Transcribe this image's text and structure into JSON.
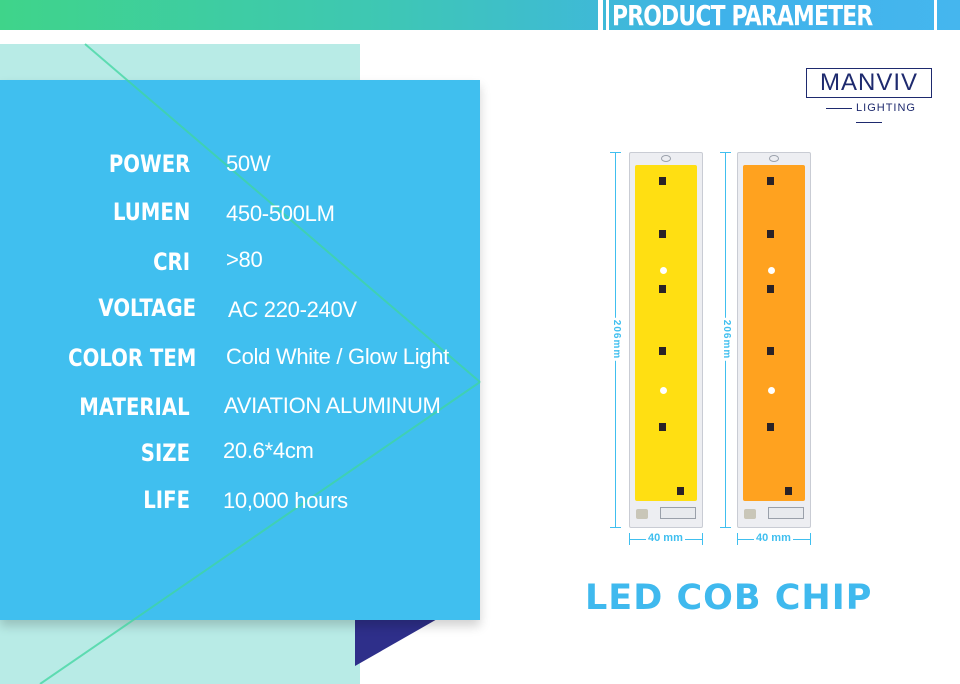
{
  "header": {
    "title": "PRODUCT PARAMETER"
  },
  "brand": {
    "name": "MANVIV",
    "tagline": "LIGHTING"
  },
  "parameters": [
    {
      "label": "POWER",
      "value": "50W"
    },
    {
      "label": "LUMEN",
      "value": "450-500LM"
    },
    {
      "label": "CRI",
      "value": ">80"
    },
    {
      "label": "VOLTAGE",
      "value": "AC 220-240V"
    },
    {
      "label": "COLOR TEM",
      "value": "Cold White / Glow Light"
    },
    {
      "label": "MATERIAL",
      "value": "AVIATION ALUMINUM"
    },
    {
      "label": "SIZE",
      "value": "20.6*4cm"
    },
    {
      "label": "LIFE",
      "value": "10,000 hours"
    }
  ],
  "chips": [
    {
      "color": "#ffdf12",
      "length_label": "206mm",
      "width_label": "40 mm"
    },
    {
      "color": "#ffa21f",
      "length_label": "206mm",
      "width_label": "40 mm"
    }
  ],
  "product": {
    "name": "LED COB CHIP"
  },
  "colors": {
    "accent": "#40bfef",
    "mint": "#b8ebe6",
    "navy": "#2e2f8a"
  }
}
